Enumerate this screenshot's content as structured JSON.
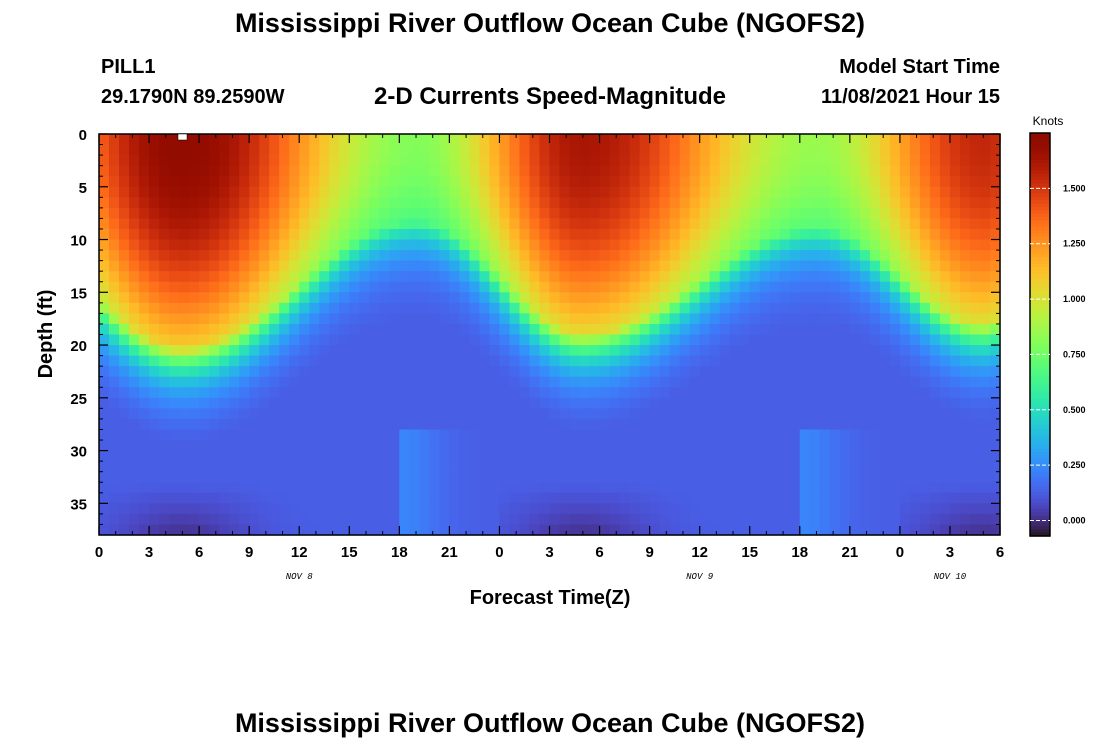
{
  "header": {
    "title": "Mississippi River Outflow Ocean Cube (NGOFS2)",
    "station": "PILL1",
    "coords": "29.1790N  89.2590W",
    "subtitle": "2-D Currents Speed-Magnitude",
    "model_start_label": "Model Start Time",
    "model_start_value": "11/08/2021 Hour 15"
  },
  "footer": {
    "title": "Mississippi River Outflow Ocean Cube (NGOFS2)"
  },
  "chart_data": {
    "type": "heatmap",
    "xlabel": "Forecast Time(Z)",
    "ylabel": "Depth (ft)",
    "x_tick_labels": [
      "0",
      "3",
      "6",
      "9",
      "12",
      "15",
      "18",
      "21",
      "0",
      "3",
      "6",
      "9",
      "12",
      "15",
      "18",
      "21",
      "0",
      "3",
      "6"
    ],
    "x_range_hours": [
      0,
      54
    ],
    "day_labels": [
      {
        "text": "NOV 8",
        "hour": 12
      },
      {
        "text": "NOV 9",
        "hour": 36
      },
      {
        "text": "NOV 10",
        "hour": 51
      }
    ],
    "y_ticks": [
      0,
      5,
      10,
      15,
      20,
      25,
      30,
      35
    ],
    "ylim": [
      0,
      38
    ],
    "y_inverted": true,
    "colorbar": {
      "title": "Knots",
      "tick_values": [
        0.0,
        0.25,
        0.5,
        0.75,
        1.0,
        1.25,
        1.5
      ],
      "tick_labels": [
        "0.000",
        "0.250",
        "0.500",
        "0.750",
        "1.000",
        "1.250",
        "1.500"
      ],
      "range": [
        -0.07,
        1.75
      ],
      "colormap": "turbo"
    },
    "surface_speed_peaks": [
      {
        "hour": 5,
        "knots": 1.72
      },
      {
        "hour": 29,
        "knots": 1.62
      },
      {
        "hour": 53,
        "knots": 1.55
      }
    ],
    "surface_speed_minima": [
      {
        "hour": 19,
        "knots": 0.8
      },
      {
        "hour": 43,
        "knots": 0.85
      }
    ]
  }
}
